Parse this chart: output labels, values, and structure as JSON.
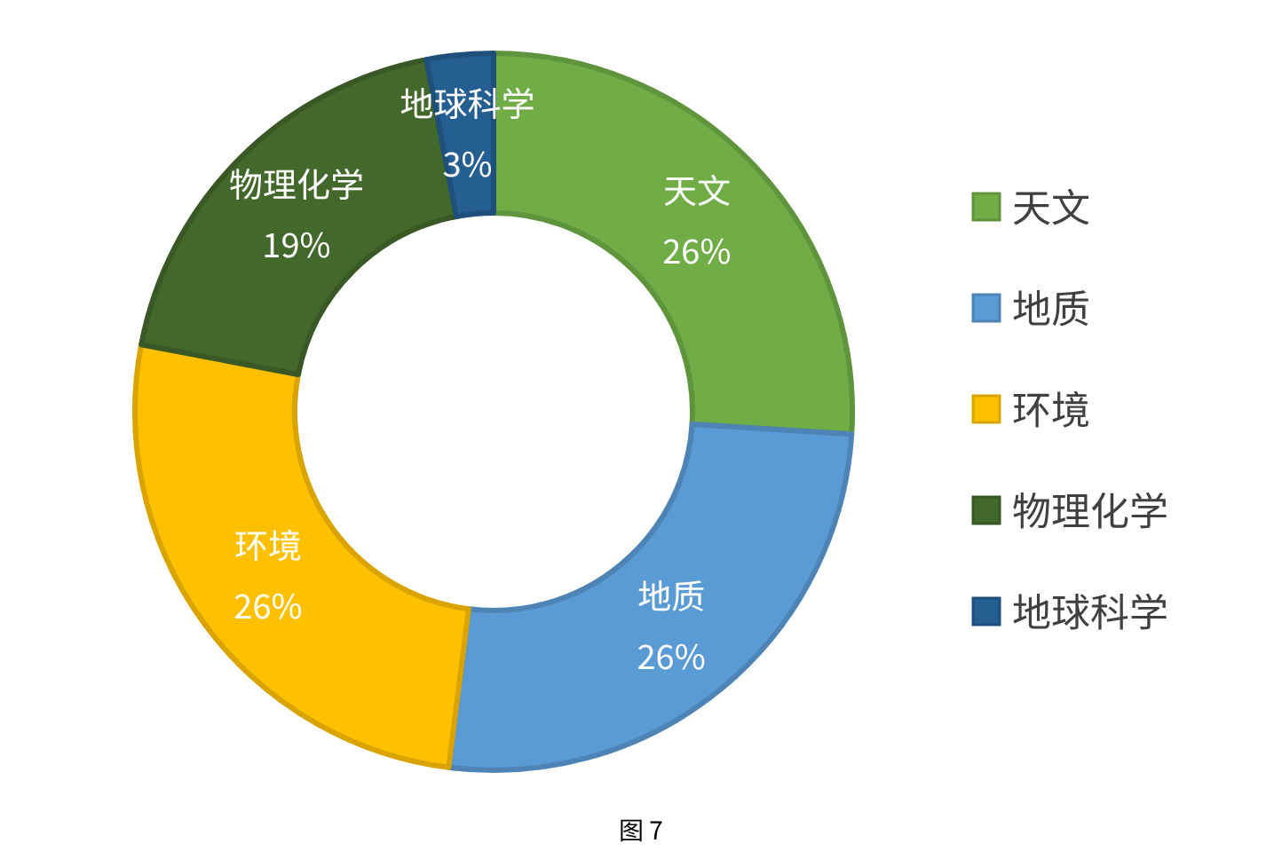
{
  "chart_data": {
    "type": "donut",
    "categories": [
      "天文",
      "地质",
      "环境",
      "物理化学",
      "地球科学"
    ],
    "values": [
      26,
      26,
      26,
      19,
      3
    ],
    "colors": [
      "#70ad47",
      "#5b9bd5",
      "#ffc000",
      "#43682b",
      "#255e91"
    ],
    "value_labels": [
      "26%",
      "26%",
      "26%",
      "19%",
      "3%"
    ],
    "legend": "right",
    "annotations": [
      "图 7"
    ]
  }
}
